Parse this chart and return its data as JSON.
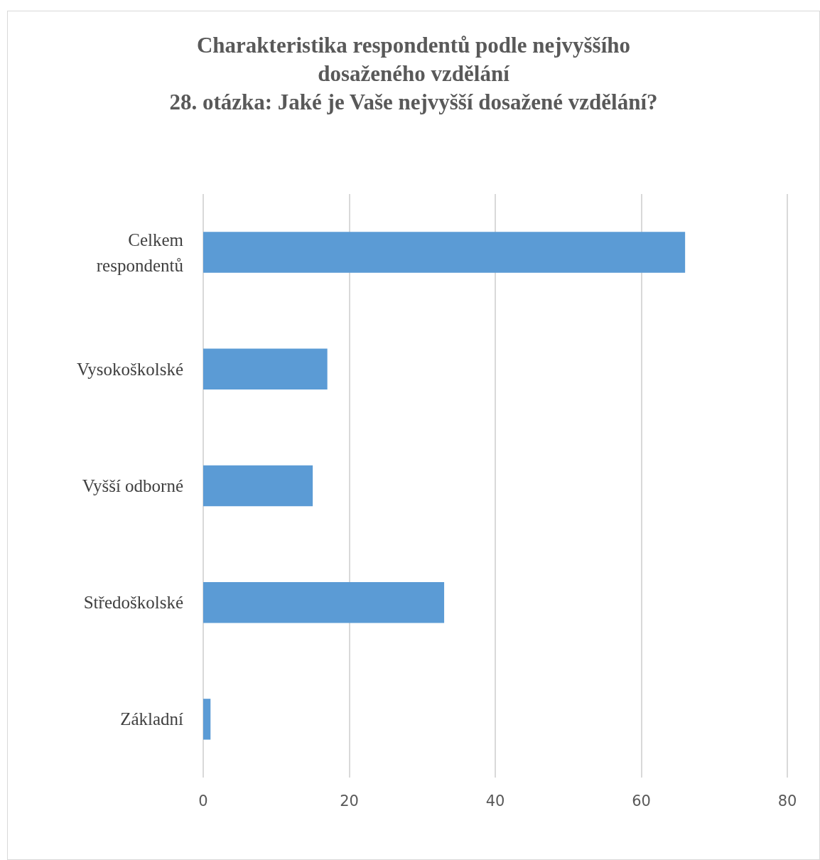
{
  "chart_data": {
    "type": "bar",
    "orientation": "horizontal",
    "title": "Charakteristika respondentů podle nejvyššího\ndosaženého vzdělání\n28. otázka: Jaké je Vaše nejvyšší dosažené vzdělání?",
    "categories": [
      "Celkem respondentů",
      "Vysokoškolské",
      "Vyšší odborné",
      "Středoškolské",
      "Základní"
    ],
    "values": [
      66,
      17,
      15,
      33,
      1
    ],
    "color": "#5b9bd5",
    "xlim": [
      0,
      80
    ],
    "xticks": [
      0,
      20,
      40,
      60,
      80
    ],
    "grid": "x"
  }
}
